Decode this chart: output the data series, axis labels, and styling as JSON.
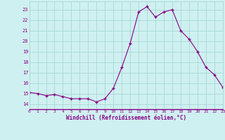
{
  "x": [
    0,
    1,
    2,
    3,
    4,
    5,
    6,
    7,
    8,
    9,
    10,
    11,
    12,
    13,
    14,
    15,
    16,
    17,
    18,
    19,
    20,
    21,
    22,
    23
  ],
  "y": [
    15.1,
    15.0,
    14.8,
    14.9,
    14.7,
    14.5,
    14.5,
    14.5,
    14.2,
    14.5,
    15.5,
    17.5,
    19.8,
    22.8,
    23.3,
    22.3,
    22.8,
    23.0,
    21.0,
    20.2,
    19.0,
    17.5,
    16.8,
    15.6
  ],
  "line_color": "#880088",
  "marker": "+",
  "marker_size": 3.5,
  "background_color": "#cff0f0",
  "grid_color": "#a8d8d8",
  "tick_color": "#880088",
  "xlabel": "Windchill (Refroidissement éolien,°C)",
  "xlabel_color": "#880088",
  "ylabel_ticks": [
    14,
    15,
    16,
    17,
    18,
    19,
    20,
    21,
    22,
    23
  ],
  "xlim": [
    0,
    23
  ],
  "ylim": [
    13.5,
    23.8
  ],
  "xtick_fontsize": 4.5,
  "ytick_fontsize": 5.0,
  "xlabel_fontsize": 5.5
}
